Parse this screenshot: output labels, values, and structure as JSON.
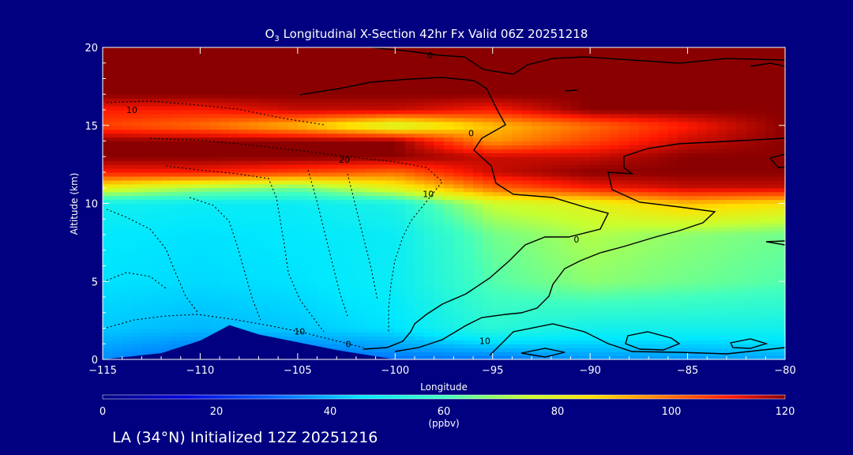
{
  "chart_data": {
    "type": "heatmap",
    "title_prefix": "O",
    "title_subscript": "3",
    "title_suffix": " Longitudinal X-Section 42hr  Fx Valid 06Z 20251218",
    "xlabel": "Longitude",
    "ylabel": "Altitude (km)",
    "xlim": [
      -115,
      -80
    ],
    "ylim": [
      0,
      20
    ],
    "x_ticks": [
      -115,
      -110,
      -105,
      -100,
      -95,
      -90,
      -85,
      -80
    ],
    "x_tick_labels": [
      "−115",
      "−110",
      "−105",
      "−100",
      "−95",
      "−90",
      "−85",
      "−80"
    ],
    "y_ticks": [
      0,
      5,
      10,
      15,
      20
    ],
    "y_tick_labels": [
      "0",
      "5",
      "10",
      "15",
      "20"
    ],
    "colorbar": {
      "min": 0,
      "max": 120,
      "ticks": [
        0,
        20,
        40,
        60,
        80,
        100,
        120
      ],
      "tick_labels": [
        "0",
        "20",
        "40",
        "60",
        "80",
        "100",
        "120"
      ],
      "unit": "(ppbv)"
    },
    "contour_labels": [
      {
        "text": "0",
        "x": -98.2,
        "y": 19.5
      },
      {
        "text": "10",
        "x": -113.5,
        "y": 16.0
      },
      {
        "text": "0",
        "x": -96.1,
        "y": 14.5
      },
      {
        "text": "20",
        "x": -102.6,
        "y": 12.8
      },
      {
        "text": "10",
        "x": -98.3,
        "y": 10.6
      },
      {
        "text": "0",
        "x": -90.7,
        "y": 7.7
      },
      {
        "text": "10",
        "x": -104.9,
        "y": 1.8
      },
      {
        "text": "0",
        "x": -102.4,
        "y": 1.0
      },
      {
        "text": "10",
        "x": -95.4,
        "y": 1.2
      }
    ],
    "ozone_field_ppbv": {
      "longitudes": [
        -115,
        -110,
        -105,
        -100,
        -95,
        -90,
        -85,
        -80
      ],
      "altitudes_km": [
        0,
        2,
        5,
        8,
        10,
        11,
        12,
        13,
        14,
        15,
        16,
        17,
        20
      ],
      "values": [
        [
          35,
          30,
          30,
          32,
          32,
          36,
          36,
          38
        ],
        [
          42,
          40,
          42,
          45,
          55,
          50,
          50,
          50
        ],
        [
          45,
          44,
          45,
          48,
          62,
          68,
          65,
          62
        ],
        [
          46,
          45,
          46,
          48,
          65,
          72,
          68,
          65
        ],
        [
          50,
          48,
          48,
          52,
          75,
          80,
          90,
          85
        ],
        [
          80,
          70,
          65,
          80,
          100,
          110,
          115,
          115
        ],
        [
          110,
          110,
          105,
          100,
          115,
          120,
          120,
          120
        ],
        [
          120,
          120,
          120,
          120,
          115,
          115,
          120,
          120
        ],
        [
          120,
          120,
          120,
          120,
          95,
          105,
          115,
          120
        ],
        [
          105,
          100,
          90,
          75,
          90,
          100,
          110,
          120
        ],
        [
          110,
          110,
          115,
          115,
          110,
          120,
          120,
          120
        ],
        [
          120,
          120,
          120,
          120,
          120,
          120,
          120,
          120
        ],
        [
          120,
          120,
          120,
          120,
          120,
          120,
          120,
          120
        ]
      ]
    },
    "terrain_km": {
      "longitudes": [
        -115,
        -112,
        -110,
        -108.5,
        -107,
        -105,
        -103,
        -101,
        -100,
        -80
      ],
      "heights": [
        0,
        0.4,
        1.2,
        2.2,
        1.6,
        1.1,
        0.6,
        0.2,
        0,
        0
      ]
    }
  },
  "footer": "LA (34°N) Initialized 12Z 20251216"
}
